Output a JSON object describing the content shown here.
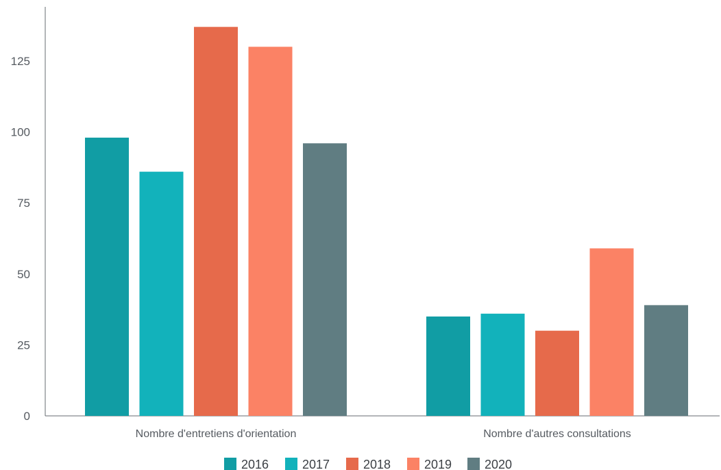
{
  "chart_data": {
    "type": "bar",
    "categories": [
      "Nombre d'entretiens d'orientation",
      "Nombre d'autres consultations"
    ],
    "series": [
      {
        "name": "2016",
        "color": "#119da4",
        "values": [
          98,
          35
        ]
      },
      {
        "name": "2017",
        "color": "#12b2bb",
        "values": [
          86,
          36
        ]
      },
      {
        "name": "2018",
        "color": "#e66a4b",
        "values": [
          137,
          30
        ]
      },
      {
        "name": "2019",
        "color": "#fb8265",
        "values": [
          130,
          59
        ]
      },
      {
        "name": "2020",
        "color": "#607d82",
        "values": [
          96,
          39
        ]
      }
    ],
    "y_ticks": [
      "0",
      "25",
      "50",
      "75",
      "100",
      "125"
    ],
    "ylim": [
      0,
      143
    ],
    "grid": false,
    "legend_position": "bottom"
  }
}
